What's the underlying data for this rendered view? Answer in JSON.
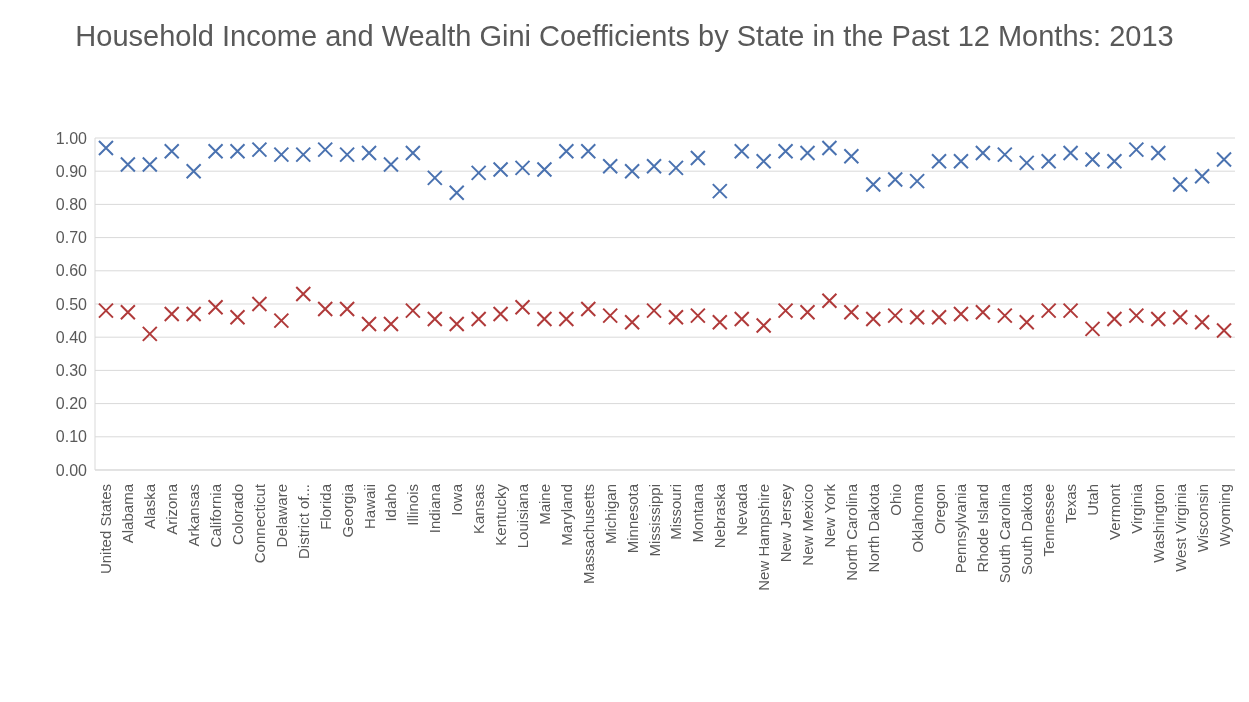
{
  "chart_data": {
    "type": "scatter",
    "title": "Household Income and Wealth Gini Coefficients by State in the Past 12 Months: 2013",
    "categories": [
      "United States",
      "Alabama",
      "Alaska",
      "Arizona",
      "Arkansas",
      "California",
      "Colorado",
      "Connecticut",
      "Delaware",
      "District of...",
      "Florida",
      "Georgia",
      "Hawaii",
      "Idaho",
      "Illinois",
      "Indiana",
      "Iowa",
      "Kansas",
      "Kentucky",
      "Louisiana",
      "Maine",
      "Maryland",
      "Massachusetts",
      "Michigan",
      "Minnesota",
      "Mississippi",
      "Missouri",
      "Montana",
      "Nebraska",
      "Nevada",
      "New Hampshire",
      "New Jersey",
      "New Mexico",
      "New York",
      "North Carolina",
      "North Dakota",
      "Ohio",
      "Oklahoma",
      "Oregon",
      "Pennsylvania",
      "Rhode Island",
      "South Carolina",
      "South Dakota",
      "Tennessee",
      "Texas",
      "Utah",
      "Vermont",
      "Virginia",
      "Washington",
      "West Virginia",
      "Wisconsin",
      "Wyoming"
    ],
    "series": [
      {
        "color": "#4a72b0",
        "values": [
          0.97,
          0.92,
          0.92,
          0.96,
          0.9,
          0.96,
          0.96,
          0.965,
          0.95,
          0.95,
          0.965,
          0.95,
          0.955,
          0.92,
          0.955,
          0.88,
          0.835,
          0.895,
          0.905,
          0.91,
          0.905,
          0.96,
          0.96,
          0.915,
          0.9,
          0.915,
          0.91,
          0.94,
          0.84,
          0.96,
          0.93,
          0.96,
          0.955,
          0.97,
          0.945,
          0.86,
          0.875,
          0.87,
          0.93,
          0.93,
          0.955,
          0.95,
          0.925,
          0.93,
          0.955,
          0.935,
          0.93,
          0.965,
          0.955,
          0.86,
          0.885,
          0.935
        ]
      },
      {
        "color": "#b03a3a",
        "values": [
          0.48,
          0.475,
          0.41,
          0.47,
          0.47,
          0.49,
          0.46,
          0.5,
          0.45,
          0.53,
          0.485,
          0.485,
          0.44,
          0.44,
          0.48,
          0.455,
          0.44,
          0.455,
          0.47,
          0.49,
          0.455,
          0.455,
          0.485,
          0.465,
          0.445,
          0.48,
          0.46,
          0.465,
          0.445,
          0.455,
          0.435,
          0.48,
          0.475,
          0.51,
          0.475,
          0.455,
          0.465,
          0.46,
          0.46,
          0.47,
          0.475,
          0.465,
          0.445,
          0.48,
          0.48,
          0.425,
          0.455,
          0.465,
          0.455,
          0.46,
          0.445,
          0.42
        ]
      }
    ],
    "ylim": [
      0,
      1
    ],
    "yticks": [
      {
        "value": 0,
        "label": "0.00"
      },
      {
        "value": 0.1,
        "label": "0.10"
      },
      {
        "value": 0.2,
        "label": "0.20"
      },
      {
        "value": 0.3,
        "label": "0.30"
      },
      {
        "value": 0.4,
        "label": "0.40"
      },
      {
        "value": 0.5,
        "label": "0.50"
      },
      {
        "value": 0.6,
        "label": "0.60"
      },
      {
        "value": 0.7,
        "label": "0.70"
      },
      {
        "value": 0.8,
        "label": "0.80"
      },
      {
        "value": 0.9,
        "label": "0.90"
      },
      {
        "value": 1,
        "label": "1.00"
      }
    ],
    "grid": "y",
    "marker": "cross",
    "legend": false
  }
}
